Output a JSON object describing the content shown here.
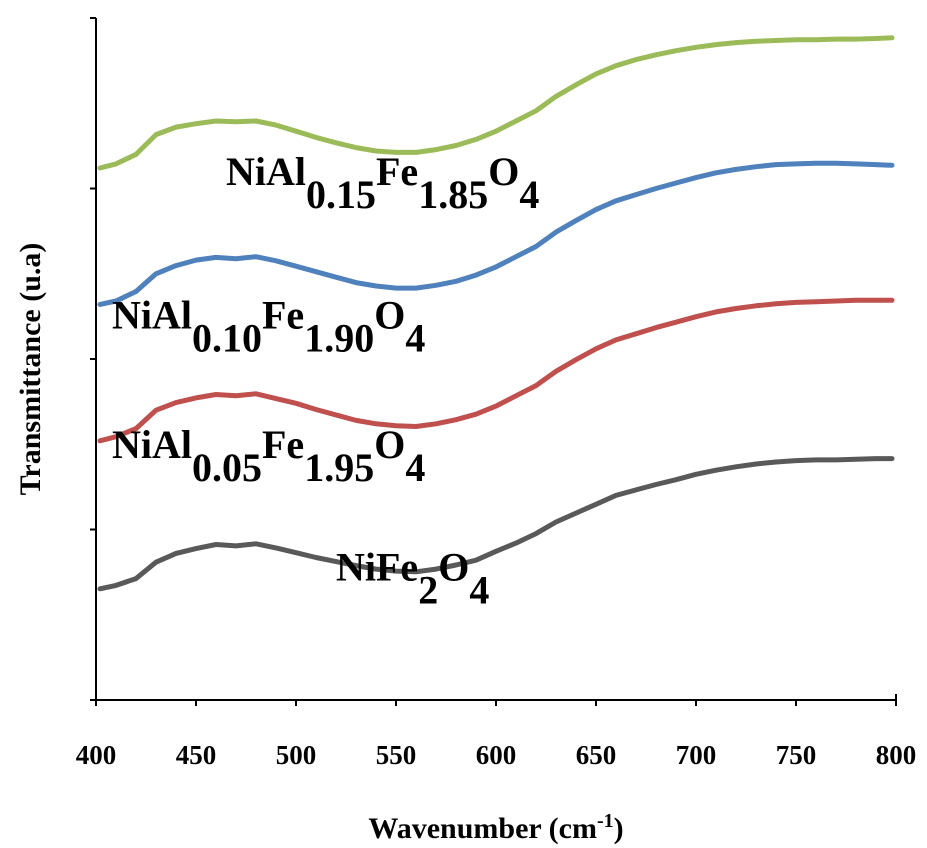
{
  "chart_data": {
    "type": "line",
    "title": "",
    "xlabel": "Wavenumber (cm",
    "xlabel_sup": "-1",
    "xlabel_end": ")",
    "ylabel": "Transmittance (u.a)",
    "xlim": [
      400,
      800
    ],
    "ylim": [
      0,
      100
    ],
    "y_ticks_labeled": false,
    "grid": false,
    "x_ticks": [
      "400",
      "450",
      "500",
      "550",
      "600",
      "650",
      "700",
      "750",
      "800"
    ],
    "y_ticks": [
      0,
      25,
      50,
      75,
      100
    ],
    "x": [
      402,
      410,
      420,
      430,
      440,
      450,
      460,
      470,
      480,
      490,
      500,
      510,
      520,
      530,
      540,
      550,
      560,
      570,
      580,
      590,
      600,
      610,
      620,
      630,
      640,
      650,
      660,
      670,
      680,
      690,
      700,
      710,
      720,
      730,
      740,
      750,
      760,
      770,
      780,
      790,
      798
    ],
    "series": [
      {
        "name": "NiFe₂O₄",
        "label_parts": [
          [
            "NiFe",
            ""
          ],
          [
            "2",
            "sub"
          ],
          [
            "O",
            ""
          ],
          [
            "4",
            "sub"
          ]
        ],
        "label_pos": [
          520,
          17.5
        ],
        "color": "#595959",
        "values": [
          16.3,
          16.8,
          17.8,
          20.2,
          21.5,
          22.2,
          22.8,
          22.6,
          22.9,
          22.3,
          21.6,
          20.9,
          20.3,
          19.7,
          19.2,
          18.9,
          18.8,
          19.2,
          19.8,
          20.5,
          21.8,
          23.0,
          24.4,
          26.1,
          27.4,
          28.7,
          30.0,
          30.8,
          31.6,
          32.3,
          33.1,
          33.7,
          34.2,
          34.6,
          34.9,
          35.1,
          35.2,
          35.2,
          35.3,
          35.4,
          35.4
        ]
      },
      {
        "name": "NiAl₀.₀₅Fe₁.₉₅O₄",
        "label_parts": [
          [
            "NiAl",
            ""
          ],
          [
            "0.05",
            "sub"
          ],
          [
            "Fe",
            ""
          ],
          [
            "1.95",
            "sub"
          ],
          [
            "O",
            ""
          ],
          [
            "4",
            "sub"
          ]
        ],
        "label_pos": [
          408,
          35.5
        ],
        "color": "#c0504d",
        "values": [
          38.0,
          38.6,
          39.8,
          42.5,
          43.6,
          44.3,
          44.8,
          44.6,
          44.9,
          44.2,
          43.5,
          42.6,
          41.8,
          41.0,
          40.5,
          40.2,
          40.1,
          40.5,
          41.1,
          41.9,
          43.1,
          44.6,
          46.1,
          48.2,
          49.9,
          51.5,
          52.8,
          53.7,
          54.6,
          55.4,
          56.2,
          56.9,
          57.4,
          57.8,
          58.1,
          58.3,
          58.4,
          58.5,
          58.6,
          58.6,
          58.6
        ]
      },
      {
        "name": "NiAl₀.₁₀Fe₁.₉₀O₄",
        "label_parts": [
          [
            "NiAl",
            ""
          ],
          [
            "0.10",
            "sub"
          ],
          [
            "Fe",
            ""
          ],
          [
            "1.90",
            "sub"
          ],
          [
            "O",
            ""
          ],
          [
            "4",
            "sub"
          ]
        ],
        "label_pos": [
          408,
          54.5
        ],
        "color": "#4f81bd",
        "values": [
          58.0,
          58.5,
          59.9,
          62.5,
          63.7,
          64.5,
          64.9,
          64.7,
          65.0,
          64.4,
          63.6,
          62.8,
          62.0,
          61.2,
          60.7,
          60.4,
          60.4,
          60.8,
          61.4,
          62.3,
          63.5,
          65.0,
          66.5,
          68.6,
          70.3,
          71.9,
          73.2,
          74.1,
          75.0,
          75.8,
          76.6,
          77.3,
          77.8,
          78.2,
          78.5,
          78.6,
          78.7,
          78.7,
          78.6,
          78.5,
          78.4
        ]
      },
      {
        "name": "NiAl₀.₁₅Fe₁.₈₅O₄",
        "label_parts": [
          [
            "NiAl",
            ""
          ],
          [
            "0.15",
            "sub"
          ],
          [
            "Fe",
            ""
          ],
          [
            "1.85",
            "sub"
          ],
          [
            "O",
            ""
          ],
          [
            "4",
            "sub"
          ]
        ],
        "label_pos": [
          465,
          75.5
        ],
        "color": "#9bbb59",
        "values": [
          78.0,
          78.6,
          80.0,
          82.9,
          84.0,
          84.5,
          84.9,
          84.8,
          84.9,
          84.3,
          83.4,
          82.5,
          81.7,
          81.0,
          80.5,
          80.3,
          80.3,
          80.7,
          81.3,
          82.2,
          83.4,
          84.9,
          86.4,
          88.5,
          90.2,
          91.8,
          93.0,
          93.9,
          94.6,
          95.2,
          95.7,
          96.1,
          96.4,
          96.6,
          96.7,
          96.8,
          96.8,
          96.9,
          96.9,
          97.0,
          97.1
        ]
      }
    ]
  }
}
